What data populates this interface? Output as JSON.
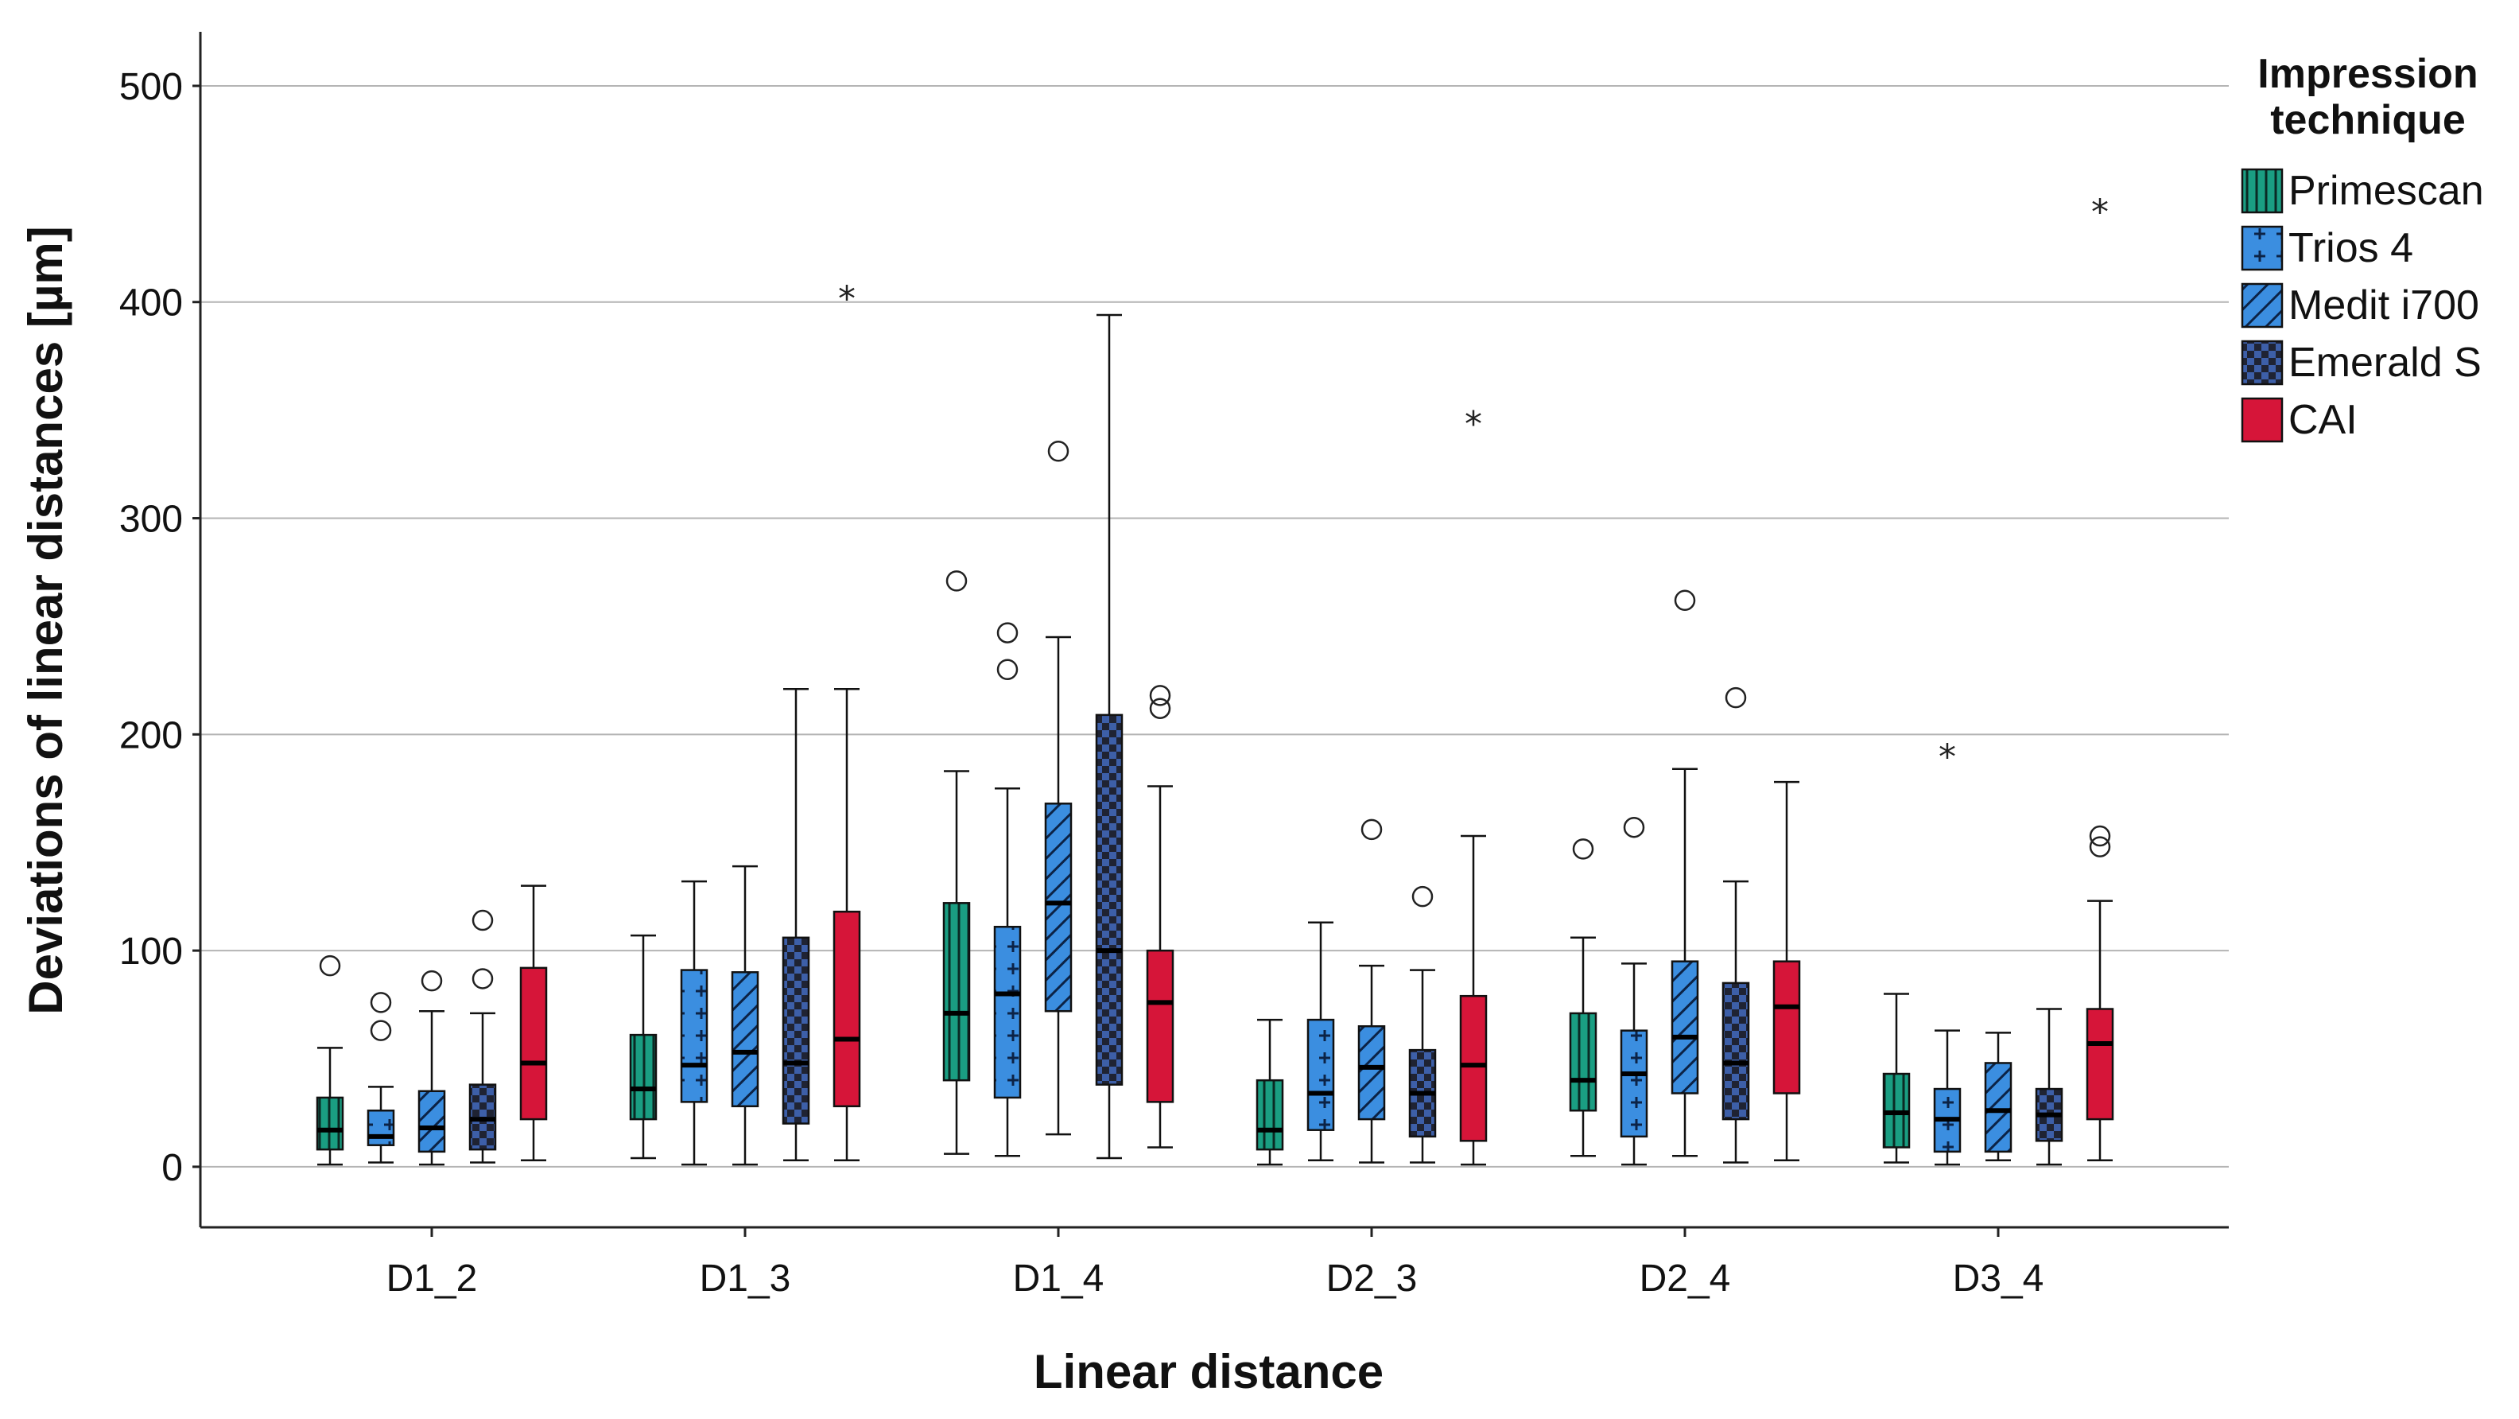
{
  "chart_data": {
    "type": "boxplot",
    "xlabel": "Linear distance",
    "ylabel": "Deviations of linear distances [µm]",
    "ylim": [
      -28,
      525
    ],
    "yticks": [
      0,
      100,
      200,
      300,
      400,
      500
    ],
    "grid": true,
    "legend_title": [
      "Impression",
      "technique"
    ],
    "legend_position": "top-right",
    "categories": [
      "D1_2",
      "D1_3",
      "D1_4",
      "D2_3",
      "D2_4",
      "D3_4"
    ],
    "series": [
      {
        "name": "Primescan",
        "color": "#1a9e82",
        "pattern": "vertical-lines",
        "boxes": [
          {
            "min": 1,
            "q1": 8,
            "median": 17,
            "q3": 32,
            "max": 55,
            "outliers": [
              93
            ],
            "extremes": []
          },
          {
            "min": 4,
            "q1": 22,
            "median": 36,
            "q3": 61,
            "max": 107,
            "outliers": [],
            "extremes": []
          },
          {
            "min": 6,
            "q1": 40,
            "median": 71,
            "q3": 122,
            "max": 183,
            "outliers": [
              271
            ],
            "extremes": []
          },
          {
            "min": 1,
            "q1": 8,
            "median": 17,
            "q3": 40,
            "max": 68,
            "outliers": [],
            "extremes": []
          },
          {
            "min": 5,
            "q1": 26,
            "median": 40,
            "q3": 71,
            "max": 106,
            "outliers": [
              147
            ],
            "extremes": []
          },
          {
            "min": 2,
            "q1": 9,
            "median": 25,
            "q3": 43,
            "max": 80,
            "outliers": [],
            "extremes": []
          }
        ]
      },
      {
        "name": "Trios 4",
        "color": "#3b8ee0",
        "pattern": "plus",
        "boxes": [
          {
            "min": 2,
            "q1": 10,
            "median": 14,
            "q3": 26,
            "max": 37,
            "outliers": [
              63,
              76
            ],
            "extremes": []
          },
          {
            "min": 1,
            "q1": 30,
            "median": 47,
            "q3": 91,
            "max": 132,
            "outliers": [],
            "extremes": []
          },
          {
            "min": 5,
            "q1": 32,
            "median": 80,
            "q3": 111,
            "max": 175,
            "outliers": [
              230,
              247
            ],
            "extremes": []
          },
          {
            "min": 3,
            "q1": 17,
            "median": 34,
            "q3": 68,
            "max": 113,
            "outliers": [],
            "extremes": []
          },
          {
            "min": 1,
            "q1": 14,
            "median": 43,
            "q3": 63,
            "max": 94,
            "outliers": [
              157
            ],
            "extremes": []
          },
          {
            "min": 1,
            "q1": 7,
            "median": 22,
            "q3": 36,
            "max": 63,
            "outliers": [],
            "extremes": [
              190
            ]
          }
        ]
      },
      {
        "name": "Medit i700",
        "color": "#3b8ee0",
        "pattern": "diagonal",
        "boxes": [
          {
            "min": 1,
            "q1": 7,
            "median": 18,
            "q3": 35,
            "max": 72,
            "outliers": [
              86
            ],
            "extremes": []
          },
          {
            "min": 1,
            "q1": 28,
            "median": 53,
            "q3": 90,
            "max": 139,
            "outliers": [],
            "extremes": []
          },
          {
            "min": 15,
            "q1": 72,
            "median": 122,
            "q3": 168,
            "max": 245,
            "outliers": [
              331
            ],
            "extremes": []
          },
          {
            "min": 2,
            "q1": 22,
            "median": 46,
            "q3": 65,
            "max": 93,
            "outliers": [
              156
            ],
            "extremes": []
          },
          {
            "min": 5,
            "q1": 34,
            "median": 60,
            "q3": 95,
            "max": 184,
            "outliers": [
              262
            ],
            "extremes": []
          },
          {
            "min": 3,
            "q1": 7,
            "median": 26,
            "q3": 48,
            "max": 62,
            "outliers": [],
            "extremes": []
          }
        ]
      },
      {
        "name": "Emerald S",
        "color": "#1f2333",
        "pattern": "checker",
        "boxes": [
          {
            "min": 2,
            "q1": 8,
            "median": 22,
            "q3": 38,
            "max": 71,
            "outliers": [
              87,
              114
            ],
            "extremes": []
          },
          {
            "min": 3,
            "q1": 20,
            "median": 48,
            "q3": 106,
            "max": 221,
            "outliers": [],
            "extremes": []
          },
          {
            "min": 4,
            "q1": 38,
            "median": 100,
            "q3": 209,
            "max": 394,
            "outliers": [],
            "extremes": []
          },
          {
            "min": 2,
            "q1": 14,
            "median": 34,
            "q3": 54,
            "max": 91,
            "outliers": [
              125
            ],
            "extremes": []
          },
          {
            "min": 2,
            "q1": 22,
            "median": 48,
            "q3": 85,
            "max": 132,
            "outliers": [
              217
            ],
            "extremes": []
          },
          {
            "min": 1,
            "q1": 12,
            "median": 24,
            "q3": 36,
            "max": 73,
            "outliers": [],
            "extremes": []
          }
        ]
      },
      {
        "name": "CAI",
        "color": "#d61539",
        "pattern": "solid",
        "boxes": [
          {
            "min": 3,
            "q1": 22,
            "median": 48,
            "q3": 92,
            "max": 130,
            "outliers": [],
            "extremes": []
          },
          {
            "min": 3,
            "q1": 28,
            "median": 59,
            "q3": 118,
            "max": 221,
            "outliers": [],
            "extremes": [
              402
            ]
          },
          {
            "min": 9,
            "q1": 30,
            "median": 76,
            "q3": 100,
            "max": 176,
            "outliers": [
              212,
              218
            ],
            "extremes": []
          },
          {
            "min": 1,
            "q1": 12,
            "median": 47,
            "q3": 79,
            "max": 153,
            "outliers": [],
            "extremes": [
              344
            ]
          },
          {
            "min": 3,
            "q1": 34,
            "median": 74,
            "q3": 95,
            "max": 178,
            "outliers": [],
            "extremes": []
          },
          {
            "min": 3,
            "q1": 22,
            "median": 57,
            "q3": 73,
            "max": 123,
            "outliers": [
              148,
              153
            ],
            "extremes": [
              442
            ]
          }
        ]
      }
    ]
  }
}
